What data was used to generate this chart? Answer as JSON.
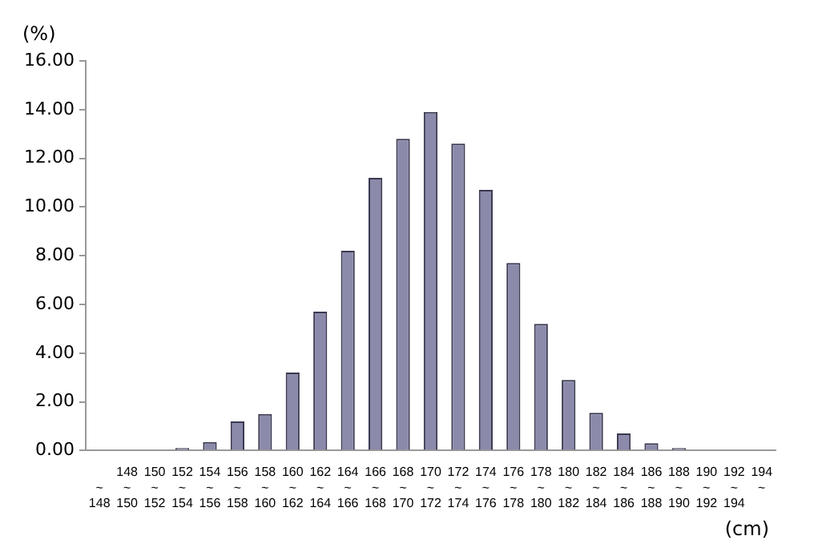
{
  "chart_data": {
    "type": "bar",
    "categories": [
      "~148",
      "148~150",
      "150~152",
      "152~154",
      "154~156",
      "156~158",
      "158~160",
      "160~162",
      "162~164",
      "164~166",
      "166~168",
      "168~170",
      "170~172",
      "172~174",
      "174~176",
      "176~178",
      "178~180",
      "180~182",
      "182~184",
      "184~186",
      "186~188",
      "188~190",
      "190~192",
      "192~194",
      "194~"
    ],
    "values": [
      0,
      0,
      0,
      0.1,
      0.35,
      1.2,
      1.5,
      3.2,
      5.7,
      8.2,
      11.2,
      12.8,
      13.9,
      12.6,
      10.7,
      7.7,
      5.2,
      2.9,
      1.55,
      0.7,
      0.3,
      0.1,
      0,
      0,
      0
    ],
    "color": "#8b8aab",
    "ylim": [
      0,
      16
    ],
    "yticks": [
      {
        "value": 0,
        "label": "0.00"
      },
      {
        "value": 2,
        "label": "2.00"
      },
      {
        "value": 4,
        "label": "4.00"
      },
      {
        "value": 6,
        "label": "6.00"
      },
      {
        "value": 8,
        "label": "8.00"
      },
      {
        "value": 10,
        "label": "10.00"
      },
      {
        "value": 12,
        "label": "12.00"
      },
      {
        "value": 14,
        "label": "14.00"
      },
      {
        "value": 16,
        "label": "16.00"
      }
    ],
    "ylabel": "(%)",
    "xlabel": "(cm)",
    "grid": false,
    "legend": false
  }
}
